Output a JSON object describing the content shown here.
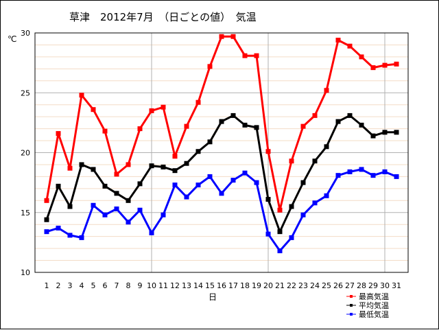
{
  "chart_data": {
    "type": "line",
    "title": "草津　2012年7月　（日ごとの値）　気温",
    "xlabel": "日",
    "ylabel": "℃",
    "ylim": [
      10,
      30
    ],
    "y_ticks": [
      10,
      15,
      20,
      25,
      30
    ],
    "x": [
      1,
      2,
      3,
      4,
      5,
      6,
      7,
      8,
      9,
      10,
      11,
      12,
      13,
      14,
      15,
      16,
      17,
      18,
      19,
      20,
      21,
      22,
      23,
      24,
      25,
      26,
      27,
      28,
      29,
      30,
      31
    ],
    "grid": true,
    "legend_position": "bottom-right",
    "series": [
      {
        "name": "最高気温",
        "color": "#ff0000",
        "values": [
          16.0,
          21.6,
          18.7,
          24.8,
          23.6,
          21.8,
          18.2,
          19.0,
          22.0,
          23.5,
          23.8,
          19.7,
          22.2,
          24.2,
          27.2,
          29.7,
          29.7,
          28.1,
          28.1,
          20.1,
          15.2,
          19.3,
          22.2,
          23.1,
          25.2,
          29.4,
          28.9,
          28.0,
          27.1,
          27.3,
          27.4
        ]
      },
      {
        "name": "平均気温",
        "color": "#000000",
        "values": [
          14.4,
          17.2,
          15.5,
          19.0,
          18.6,
          17.2,
          16.6,
          16.0,
          17.4,
          18.9,
          18.8,
          18.5,
          19.1,
          20.1,
          20.9,
          22.6,
          23.1,
          22.3,
          22.1,
          16.1,
          13.4,
          15.5,
          17.5,
          19.3,
          20.5,
          22.6,
          23.1,
          22.3,
          21.4,
          21.7,
          21.7
        ]
      },
      {
        "name": "最低気温",
        "color": "#0000ff",
        "values": [
          13.4,
          13.7,
          13.1,
          12.9,
          15.6,
          14.8,
          15.3,
          14.2,
          15.2,
          13.3,
          14.8,
          17.3,
          16.3,
          17.3,
          18.0,
          16.6,
          17.7,
          18.3,
          17.5,
          13.2,
          11.8,
          12.9,
          14.8,
          15.8,
          16.4,
          18.1,
          18.4,
          18.6,
          18.1,
          18.4,
          18.0
        ]
      }
    ]
  }
}
